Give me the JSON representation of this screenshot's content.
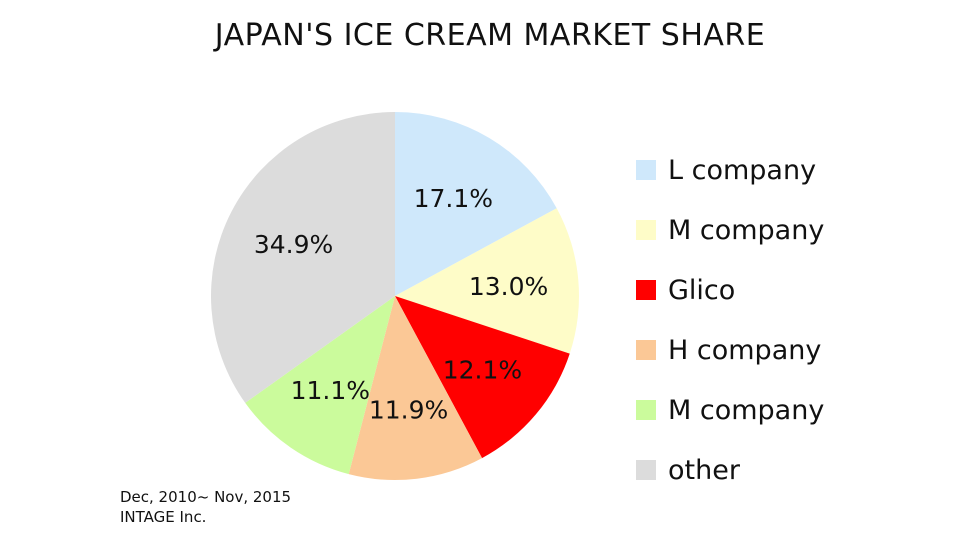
{
  "chart_data": {
    "type": "pie",
    "title": "JAPAN'S ICE CREAM MARKET SHARE",
    "legend_position": "right",
    "slices": [
      {
        "name": "L company",
        "value": 17.1,
        "label": "17.1%",
        "color": "#cfe8fb"
      },
      {
        "name": "M company",
        "value": 13.0,
        "label": "13.0%",
        "color": "#fefcc8"
      },
      {
        "name": "Glico",
        "value": 12.1,
        "label": "12.1%",
        "color": "#ff0000"
      },
      {
        "name": "H company",
        "value": 11.9,
        "label": "11.9%",
        "color": "#fbc896"
      },
      {
        "name": "M company",
        "value": 11.1,
        "label": "11.1%",
        "color": "#cbfb9c"
      },
      {
        "name": "other",
        "value": 34.9,
        "label": "34.9%",
        "color": "#dcdcdc"
      }
    ]
  },
  "source": {
    "period": "Dec, 2010~ Nov, 2015",
    "publisher": "INTAGE Inc."
  }
}
